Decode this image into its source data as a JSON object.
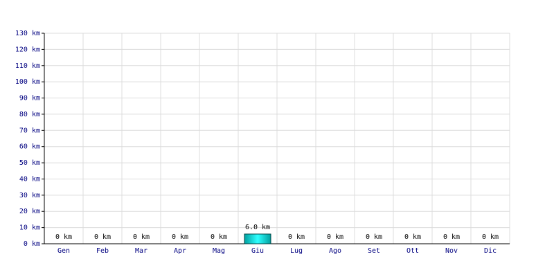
{
  "chart_data": {
    "type": "bar",
    "categories": [
      "Gen",
      "Feb",
      "Mar",
      "Apr",
      "Mag",
      "Giu",
      "Lug",
      "Ago",
      "Set",
      "Ott",
      "Nov",
      "Dic"
    ],
    "values": [
      0,
      0,
      0,
      0,
      0,
      6,
      0,
      0,
      0,
      0,
      0,
      0
    ],
    "value_labels": [
      "0 km",
      "0 km",
      "0 km",
      "0 km",
      "0 km",
      "6.0 km",
      "0 km",
      "0 km",
      "0 km",
      "0 km",
      "0 km",
      "0 km"
    ],
    "color": "#00c8c8",
    "ylim": [
      0,
      130
    ],
    "yticks": [
      {
        "value": 0,
        "label": "0 km"
      },
      {
        "value": 10,
        "label": "10 km"
      },
      {
        "value": 20,
        "label": "20 km"
      },
      {
        "value": 30,
        "label": "30 km"
      },
      {
        "value": 40,
        "label": "40 km"
      },
      {
        "value": 50,
        "label": "50 km"
      },
      {
        "value": 60,
        "label": "60 km"
      },
      {
        "value": 70,
        "label": "70 km"
      },
      {
        "value": 80,
        "label": "80 km"
      },
      {
        "value": 90,
        "label": "90 km"
      },
      {
        "value": 100,
        "label": "100 km"
      },
      {
        "value": 110,
        "label": "110 km"
      },
      {
        "value": 120,
        "label": "120 km"
      },
      {
        "value": 130,
        "label": "130 km"
      }
    ],
    "grid": true
  }
}
